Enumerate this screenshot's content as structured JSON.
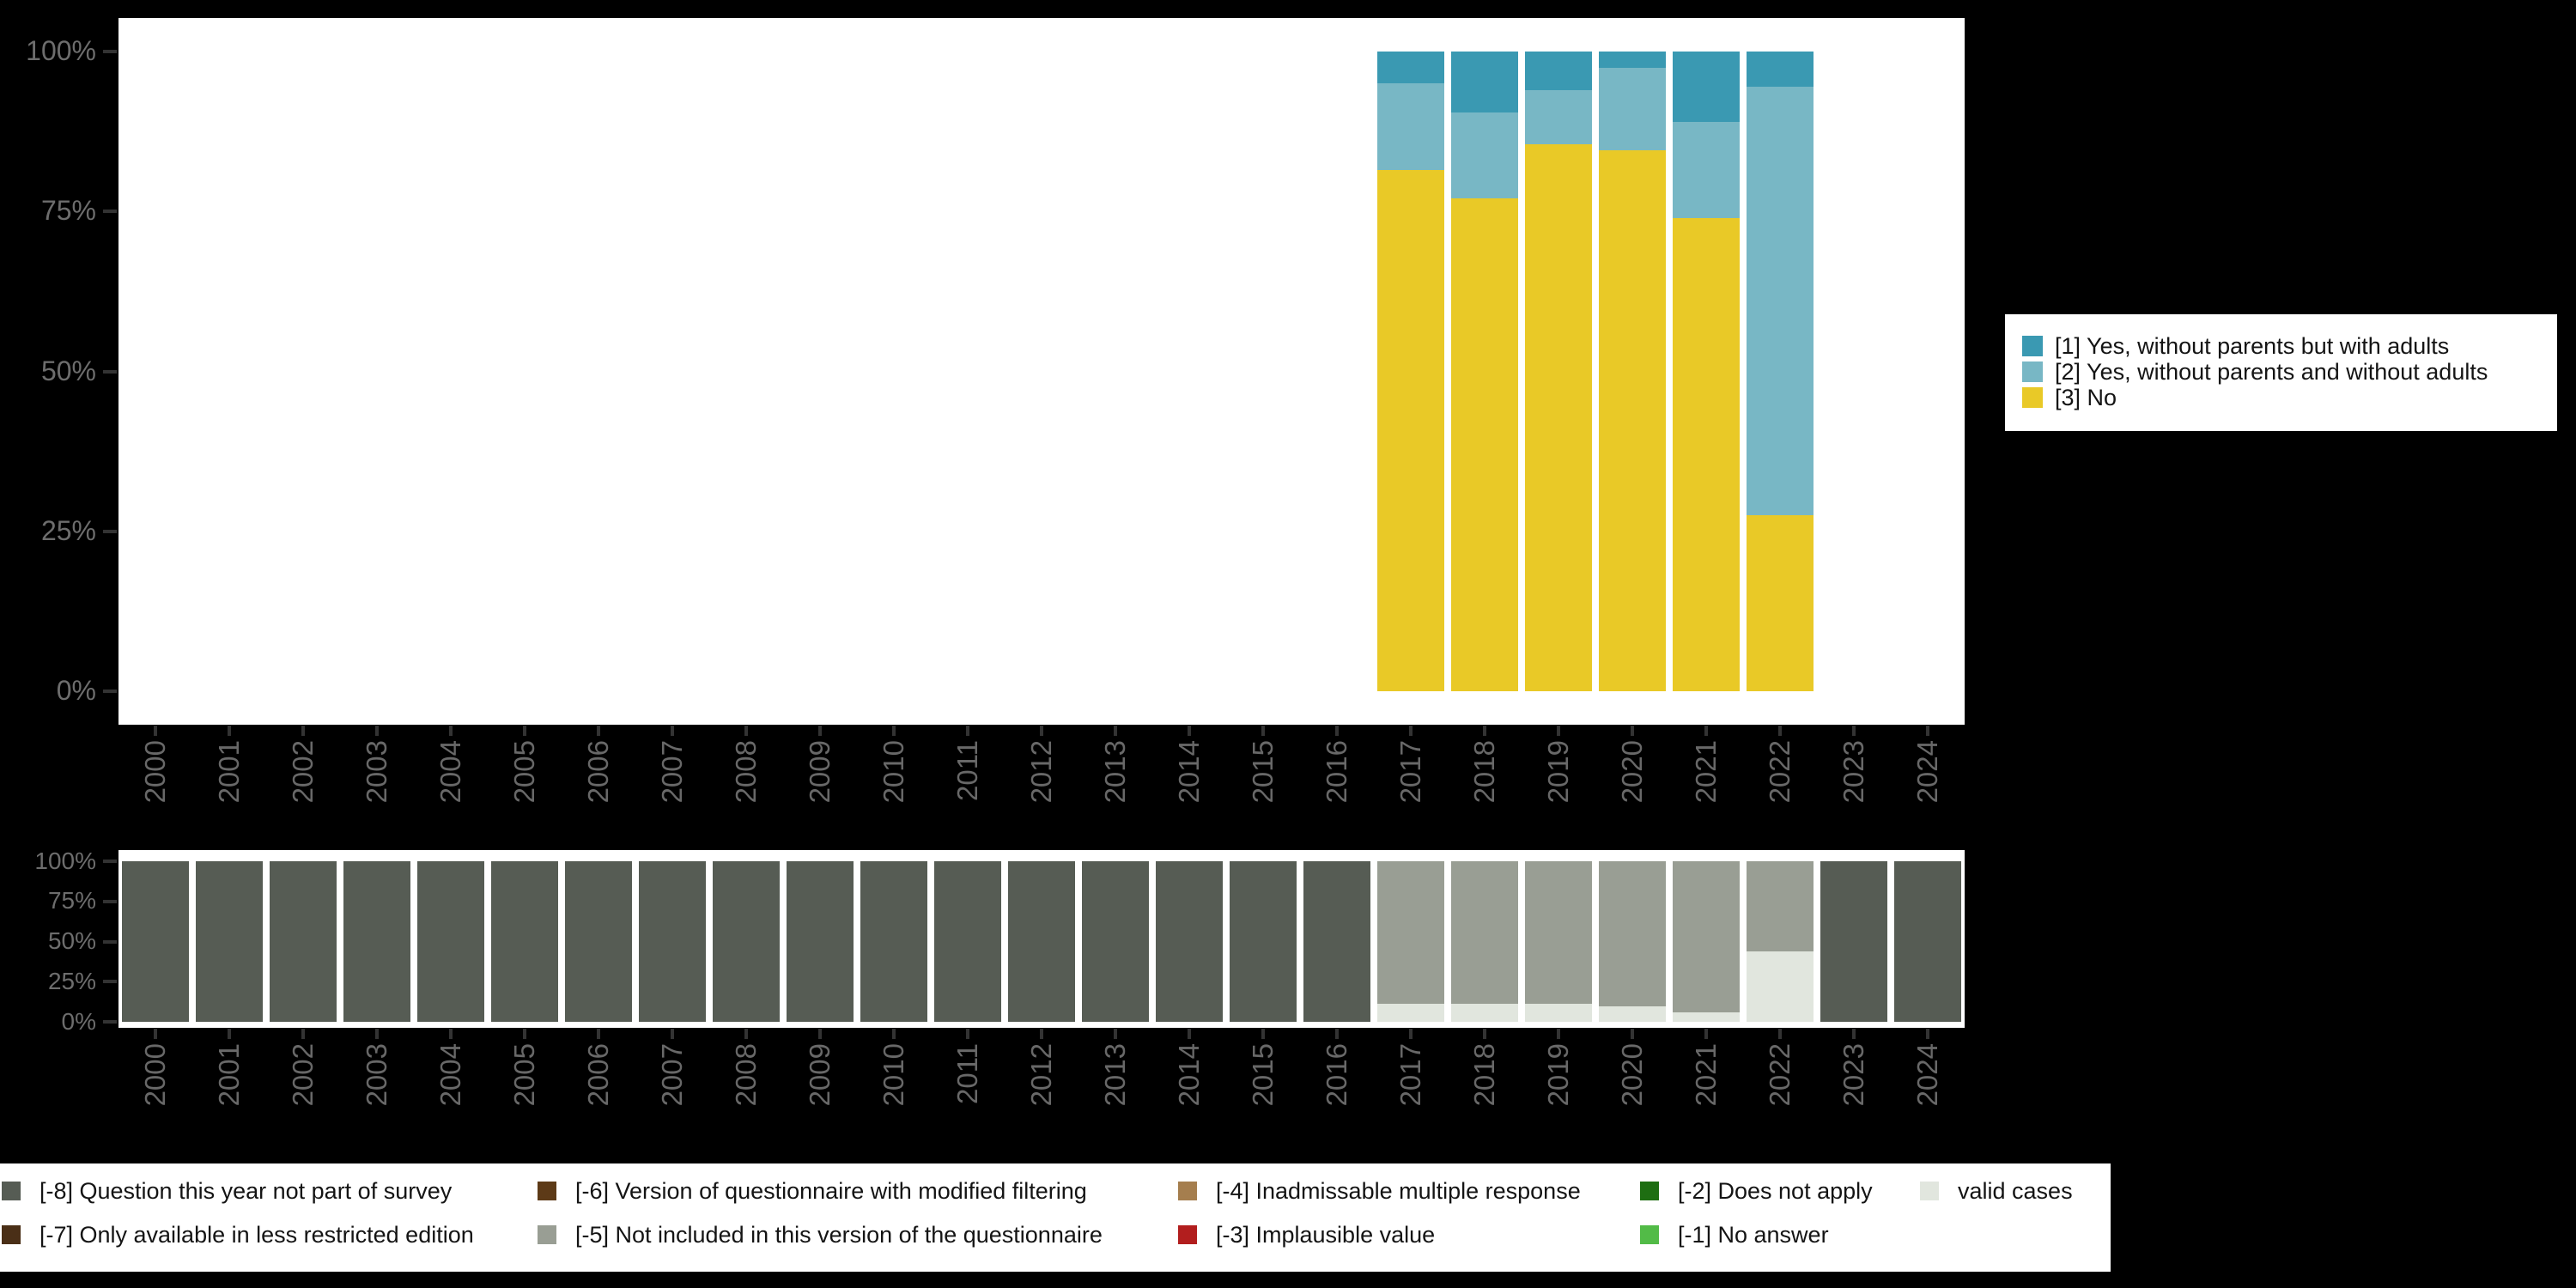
{
  "page": {
    "background": "#000000",
    "panel_background": "#ffffff",
    "axis_text_color": "#6d6d6d",
    "tick_color": "#333333"
  },
  "chart_data": [
    {
      "type": "bar",
      "stacked": true,
      "title": "",
      "xlabel": "",
      "ylabel": "",
      "categories": [
        "2000",
        "2001",
        "2002",
        "2003",
        "2004",
        "2005",
        "2006",
        "2007",
        "2008",
        "2009",
        "2010",
        "2011",
        "2012",
        "2013",
        "2014",
        "2015",
        "2016",
        "2017",
        "2018",
        "2019",
        "2020",
        "2021",
        "2022",
        "2023",
        "2024"
      ],
      "y_ticks": [
        "0%",
        "25%",
        "50%",
        "75%",
        "100%"
      ],
      "ylim": [
        0,
        100
      ],
      "grid": false,
      "legend_position": "right",
      "series": [
        {
          "name": "[1] Yes, without parents but with adults",
          "color": "#3a99b2",
          "values": [
            null,
            null,
            null,
            null,
            null,
            null,
            null,
            null,
            null,
            null,
            null,
            null,
            null,
            null,
            null,
            null,
            null,
            5,
            9.5,
            6,
            2.5,
            11,
            5.5,
            null,
            null
          ]
        },
        {
          "name": "[2] Yes, without parents and without adults",
          "color": "#78b7c5",
          "values": [
            null,
            null,
            null,
            null,
            null,
            null,
            null,
            null,
            null,
            null,
            null,
            null,
            null,
            null,
            null,
            null,
            null,
            13.5,
            13.5,
            8.5,
            13,
            15,
            67,
            null,
            null
          ]
        },
        {
          "name": "[3] No",
          "color": "#e9c927",
          "values": [
            null,
            null,
            null,
            null,
            null,
            null,
            null,
            null,
            null,
            null,
            null,
            null,
            null,
            null,
            null,
            null,
            null,
            81.5,
            77,
            85.5,
            84.5,
            74,
            27.5,
            null,
            null
          ]
        }
      ]
    },
    {
      "type": "bar",
      "stacked": true,
      "title": "",
      "xlabel": "",
      "ylabel": "",
      "categories": [
        "2000",
        "2001",
        "2002",
        "2003",
        "2004",
        "2005",
        "2006",
        "2007",
        "2008",
        "2009",
        "2010",
        "2011",
        "2012",
        "2013",
        "2014",
        "2015",
        "2016",
        "2017",
        "2018",
        "2019",
        "2020",
        "2021",
        "2022",
        "2023",
        "2024"
      ],
      "y_ticks": [
        "0%",
        "25%",
        "50%",
        "75%",
        "100%"
      ],
      "ylim": [
        0,
        100
      ],
      "grid": false,
      "legend_position": "bottom",
      "series": [
        {
          "name": "[-8] Question this year not part of survey",
          "color": "#565c54",
          "values": [
            100,
            100,
            100,
            100,
            100,
            100,
            100,
            100,
            100,
            100,
            100,
            100,
            100,
            100,
            100,
            100,
            100,
            null,
            null,
            null,
            null,
            null,
            null,
            100,
            100
          ]
        },
        {
          "name": "[-5] Not included in this version of the questionnaire",
          "color": "#999e94",
          "values": [
            null,
            null,
            null,
            null,
            null,
            null,
            null,
            null,
            null,
            null,
            null,
            null,
            null,
            null,
            null,
            null,
            null,
            89,
            89,
            89,
            90.5,
            94,
            56,
            null,
            null
          ]
        },
        {
          "name": "valid cases",
          "color": "#e1e6de",
          "values": [
            null,
            null,
            null,
            null,
            null,
            null,
            null,
            null,
            null,
            null,
            null,
            null,
            null,
            null,
            null,
            null,
            null,
            11,
            11,
            11,
            9.5,
            6,
            44,
            null,
            null
          ]
        }
      ]
    }
  ],
  "right_legend": {
    "items": [
      {
        "label": "[1] Yes, without parents but with adults",
        "color": "#3a99b2"
      },
      {
        "label": "[2] Yes, without parents and without adults",
        "color": "#78b7c5"
      },
      {
        "label": "[3] No",
        "color": "#e9c927"
      }
    ]
  },
  "bottom_legend": {
    "rows": [
      [
        {
          "label": "[-8] Question this year not part of survey",
          "color": "#565c54"
        },
        {
          "label": "[-6] Version of questionnaire with modified filtering",
          "color": "#5d3a17"
        },
        {
          "label": "[-4] Inadmissable multiple response",
          "color": "#a57e4e"
        },
        {
          "label": "[-2] Does not apply",
          "color": "#1e6e12"
        },
        {
          "label": "valid cases",
          "color": "#e1e6de"
        }
      ],
      [
        {
          "label": "[-7] Only available in less restricted edition",
          "color": "#4a2f17"
        },
        {
          "label": "[-5] Not included in this version of the questionnaire",
          "color": "#999e94"
        },
        {
          "label": "[-3] Implausible value",
          "color": "#b21e1e"
        },
        {
          "label": "[-1] No answer",
          "color": "#52bb47"
        }
      ]
    ]
  }
}
